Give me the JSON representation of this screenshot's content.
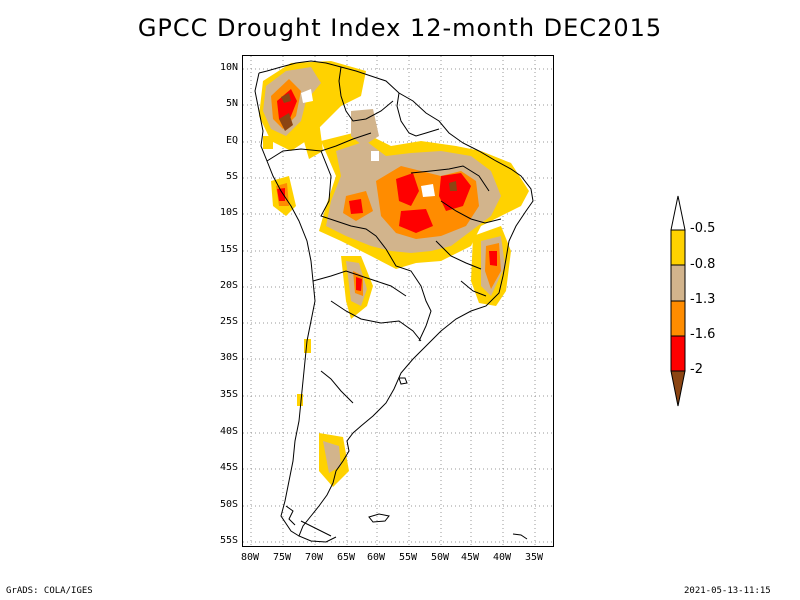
{
  "title": "GPCC Drought Index 12-month DEC2015",
  "latitude_labels": [
    "10N",
    "5N",
    "EQ",
    "5S",
    "10S",
    "15S",
    "20S",
    "25S",
    "30S",
    "35S",
    "40S",
    "45S",
    "50S",
    "55S"
  ],
  "longitude_labels": [
    "80W",
    "75W",
    "70W",
    "65W",
    "60W",
    "55W",
    "50W",
    "45W",
    "40W",
    "35W"
  ],
  "legend": {
    "labels": [
      "-0.5",
      "-0.8",
      "-1.3",
      "-1.6",
      "-2"
    ],
    "colors": {
      "light": "#ffffff",
      "yellow": "#ffd200",
      "tan": "#d2b48c",
      "orange": "#ff8c00",
      "red": "#ff0000",
      "brown": "#8b4513"
    }
  },
  "footer": {
    "left": "GrADS: COLA/IGES",
    "right": "2021-05-13-11:15"
  }
}
